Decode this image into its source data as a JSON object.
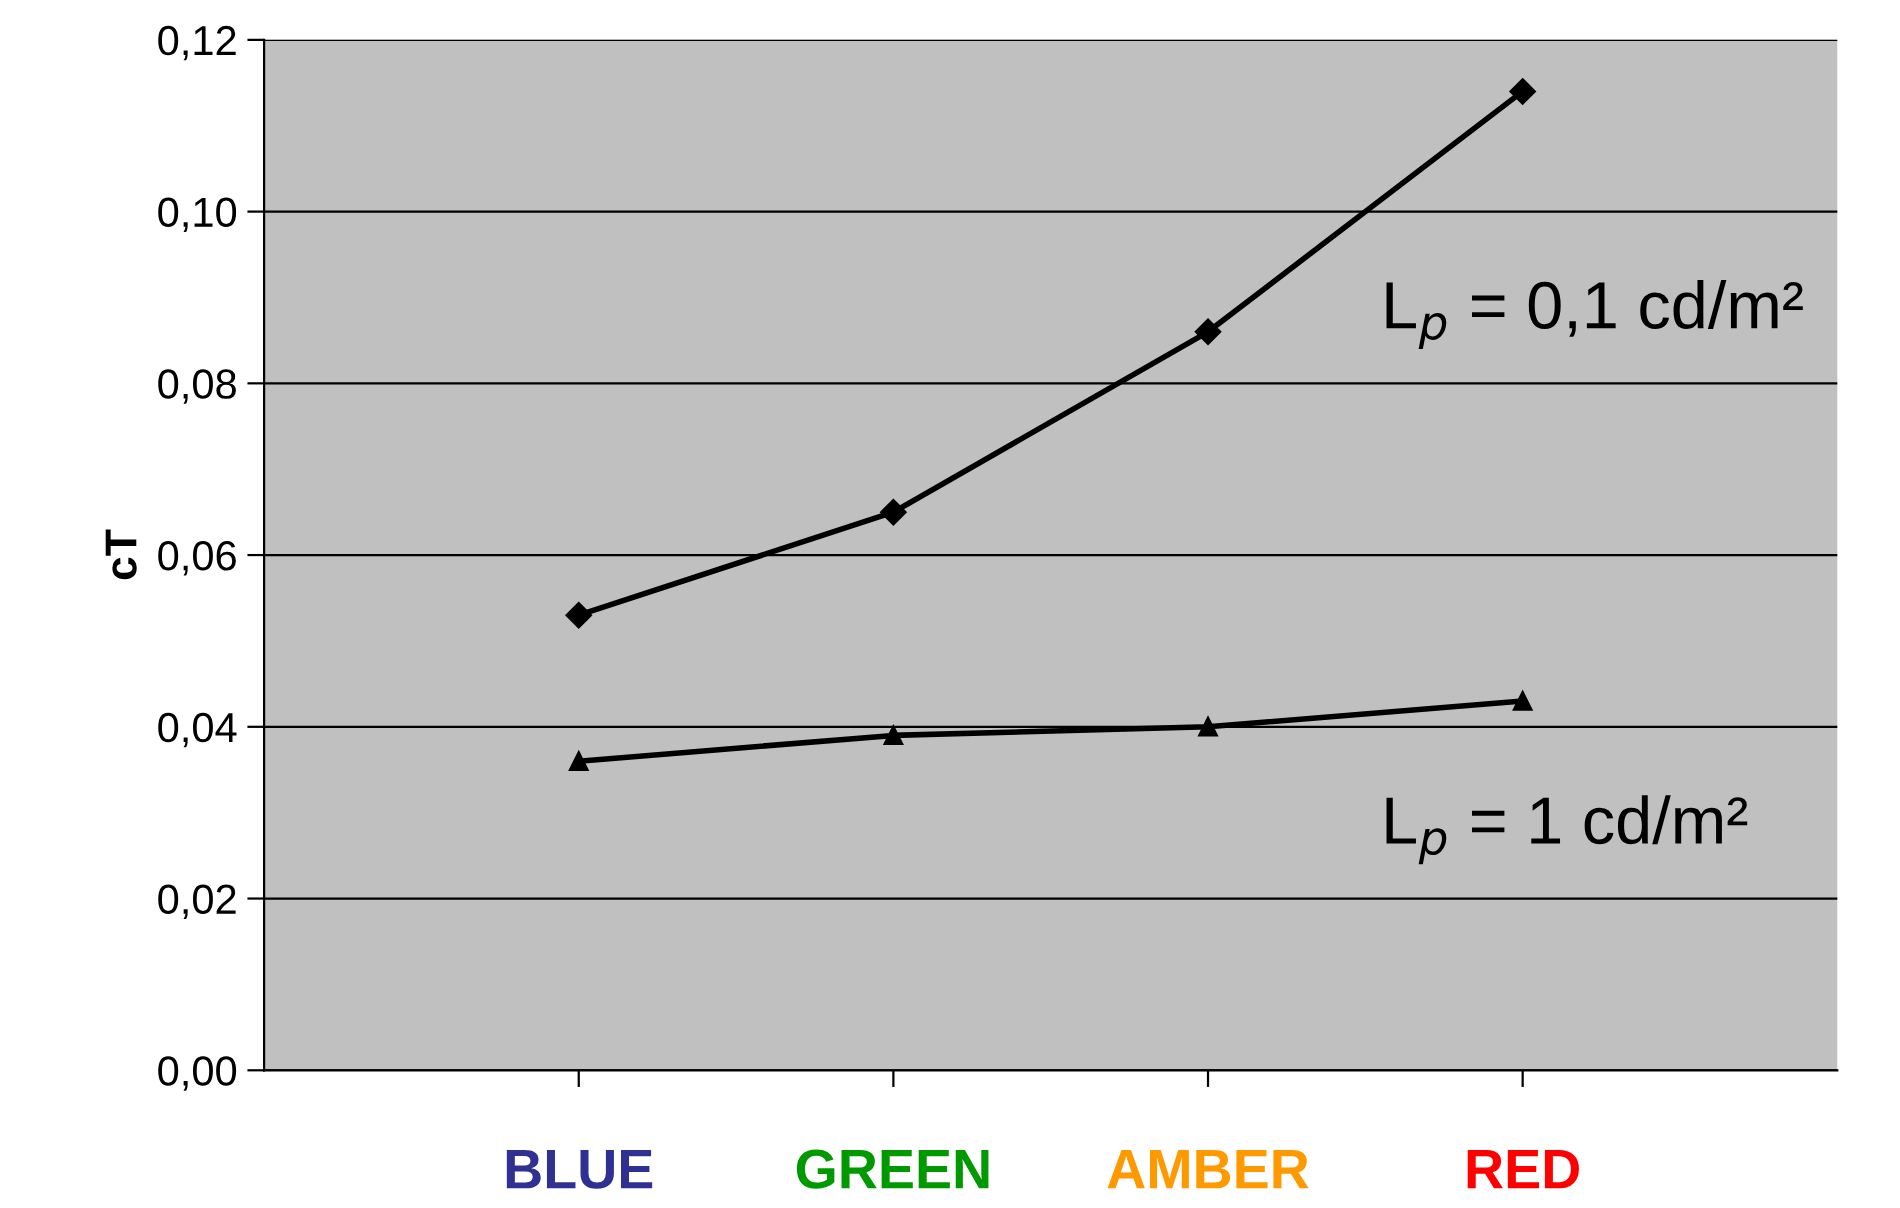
{
  "chart_data": {
    "type": "line",
    "ylabel": "cT",
    "categories": [
      "BLUE",
      "GREEN",
      "AMBER",
      "RED"
    ],
    "series": [
      {
        "name": "L$_{p}$ = 0,1 cd/m²",
        "color": "#000000",
        "marker": "diamond",
        "values": [
          0.053,
          0.065,
          0.086,
          0.114
        ]
      },
      {
        "name": "L$_{p}$ = 1 cd/m²",
        "color": "#000000",
        "marker": "triangle",
        "values": [
          0.036,
          0.039,
          0.04,
          0.043
        ]
      }
    ],
    "ylim": [
      0,
      0.12
    ],
    "yticks": [
      {
        "value": 0,
        "label": "0,00"
      },
      {
        "value": 0.02,
        "label": "0,02"
      },
      {
        "value": 0.04,
        "label": "0,04"
      },
      {
        "value": 0.06,
        "label": "0,06"
      },
      {
        "value": 0.08,
        "label": "0,08"
      },
      {
        "value": 0.1,
        "label": "0,10"
      },
      {
        "value": 0.12,
        "label": "0,12"
      }
    ],
    "grid": "y",
    "line_style": "solid",
    "legend": false
  }
}
